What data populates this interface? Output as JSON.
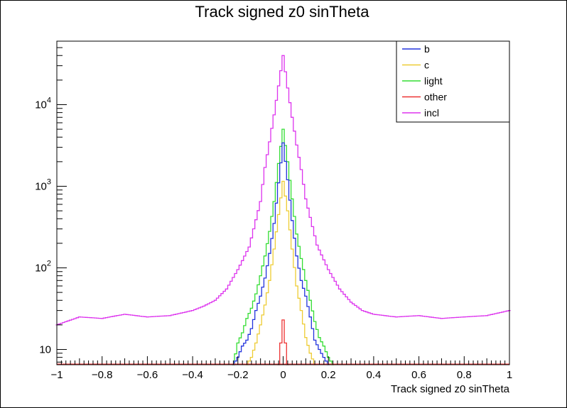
{
  "chart_data": {
    "type": "line",
    "title": "Track signed z0 sinTheta",
    "xlabel": "Track signed z0 sinTheta",
    "ylabel": "",
    "xlim": [
      -1,
      1
    ],
    "ylim": [
      6.5,
      60000
    ],
    "yscale": "log",
    "grid": false,
    "legend_position": "top-right",
    "x_ticks": [
      "−1",
      "−0.8",
      "−0.6",
      "−0.4",
      "−0.2",
      "0",
      "0.2",
      "0.4",
      "0.6",
      "0.8",
      "1"
    ],
    "y_ticks": [
      {
        "base": "10",
        "exp": ""
      },
      {
        "base": "10",
        "exp": "2"
      },
      {
        "base": "10",
        "exp": "3"
      },
      {
        "base": "10",
        "exp": "4"
      }
    ],
    "series": [
      {
        "name": "b",
        "color": "#2233dd",
        "x": [
          -0.22,
          -0.2,
          -0.18,
          -0.16,
          -0.14,
          -0.12,
          -0.1,
          -0.08,
          -0.06,
          -0.04,
          -0.02,
          0.0,
          0.02,
          0.04,
          0.06,
          0.08,
          0.1,
          0.12,
          0.14,
          0.16,
          0.18,
          0.2
        ],
        "y": [
          6.5,
          8,
          11,
          13,
          18,
          30,
          45,
          75,
          150,
          350,
          1100,
          3400,
          1200,
          380,
          140,
          70,
          45,
          25,
          13,
          10,
          8,
          6.5
        ]
      },
      {
        "name": "c",
        "color": "#eecc33",
        "x": [
          -0.16,
          -0.14,
          -0.12,
          -0.1,
          -0.08,
          -0.06,
          -0.04,
          -0.02,
          0.0,
          0.02,
          0.04,
          0.06,
          0.08,
          0.1,
          0.12,
          0.14
        ],
        "y": [
          6.5,
          8,
          12,
          20,
          35,
          70,
          170,
          450,
          1150,
          500,
          170,
          60,
          30,
          14,
          9,
          6.5
        ]
      },
      {
        "name": "light",
        "color": "#33dd33",
        "x": [
          -0.22,
          -0.2,
          -0.18,
          -0.16,
          -0.14,
          -0.12,
          -0.1,
          -0.08,
          -0.06,
          -0.04,
          -0.02,
          0.0,
          0.02,
          0.04,
          0.06,
          0.08,
          0.1,
          0.12,
          0.14,
          0.16,
          0.18,
          0.2,
          0.22
        ],
        "y": [
          6.5,
          12,
          16,
          24,
          32,
          48,
          80,
          140,
          280,
          650,
          1900,
          5000,
          2000,
          700,
          260,
          130,
          70,
          40,
          22,
          14,
          11,
          8,
          6.5
        ]
      },
      {
        "name": "other",
        "color": "#ee3333",
        "x": [
          -0.02,
          -0.01,
          0.0,
          0.01,
          0.02
        ],
        "y": [
          6.5,
          12,
          23,
          12,
          6.5
        ]
      },
      {
        "name": "incl",
        "color": "#dd33ee",
        "x": [
          -1.0,
          -0.9,
          -0.8,
          -0.7,
          -0.6,
          -0.5,
          -0.4,
          -0.35,
          -0.3,
          -0.25,
          -0.2,
          -0.15,
          -0.1,
          -0.08,
          -0.06,
          -0.04,
          -0.02,
          0.0,
          0.02,
          0.04,
          0.06,
          0.08,
          0.1,
          0.15,
          0.2,
          0.25,
          0.3,
          0.35,
          0.4,
          0.5,
          0.6,
          0.7,
          0.8,
          0.9,
          1.0
        ],
        "y": [
          20,
          25,
          24,
          27,
          25,
          26,
          30,
          34,
          40,
          55,
          95,
          180,
          650,
          1700,
          3500,
          7500,
          17000,
          40000,
          16000,
          7000,
          3200,
          1600,
          700,
          190,
          95,
          55,
          38,
          30,
          27,
          25,
          26,
          24,
          25,
          26,
          30
        ]
      }
    ]
  }
}
